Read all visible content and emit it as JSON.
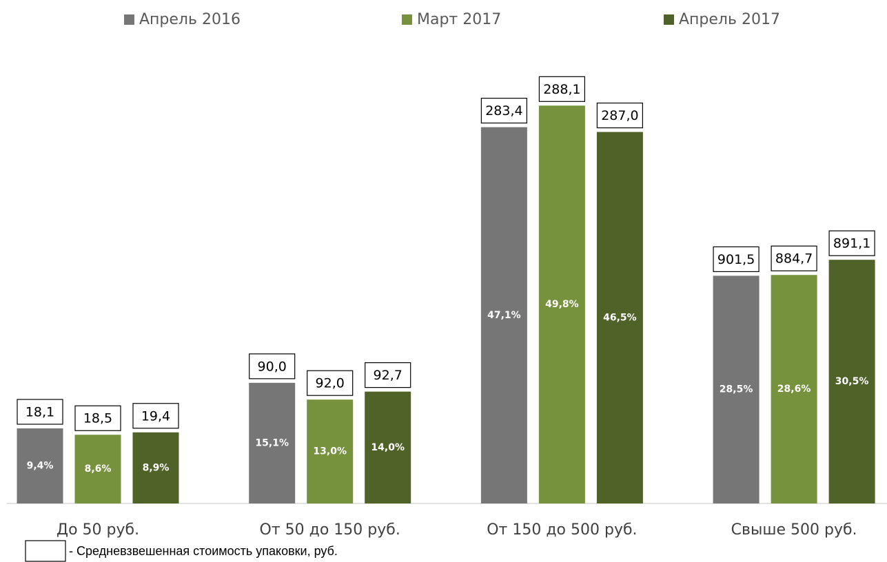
{
  "chart_data": {
    "type": "bar",
    "categories": [
      "До 50 руб.",
      "От 50 до 150 руб.",
      "От 150 до 500 руб.",
      "Свыше 500 руб."
    ],
    "series": [
      {
        "name": "Апрель 2016",
        "color": "#767676",
        "values": [
          9.4,
          15.1,
          47.1,
          28.5
        ],
        "value_labels": [
          "9,4%",
          "15,1%",
          "47,1%",
          "28,5%"
        ],
        "price_labels": [
          "18,1",
          "90,0",
          "283,4",
          "901,5"
        ]
      },
      {
        "name": "Март 2017",
        "color": "#76923c",
        "values": [
          8.6,
          13.0,
          49.8,
          28.6
        ],
        "value_labels": [
          "8,6%",
          "13,0%",
          "49,8%",
          "28,6%"
        ],
        "price_labels": [
          "18,5",
          "92,0",
          "288,1",
          "884,7"
        ]
      },
      {
        "name": "Апрель 2017",
        "color": "#4f6228",
        "values": [
          8.9,
          14.0,
          46.5,
          30.5
        ],
        "value_labels": [
          "8,9%",
          "14,0%",
          "46,5%",
          "30,5%"
        ],
        "price_labels": [
          "19,4",
          "92,7",
          "287,0",
          "891,1"
        ]
      }
    ],
    "ylim": [
      0,
      55
    ],
    "note": "- Средневзвешенная стоимость упаковки, руб."
  }
}
